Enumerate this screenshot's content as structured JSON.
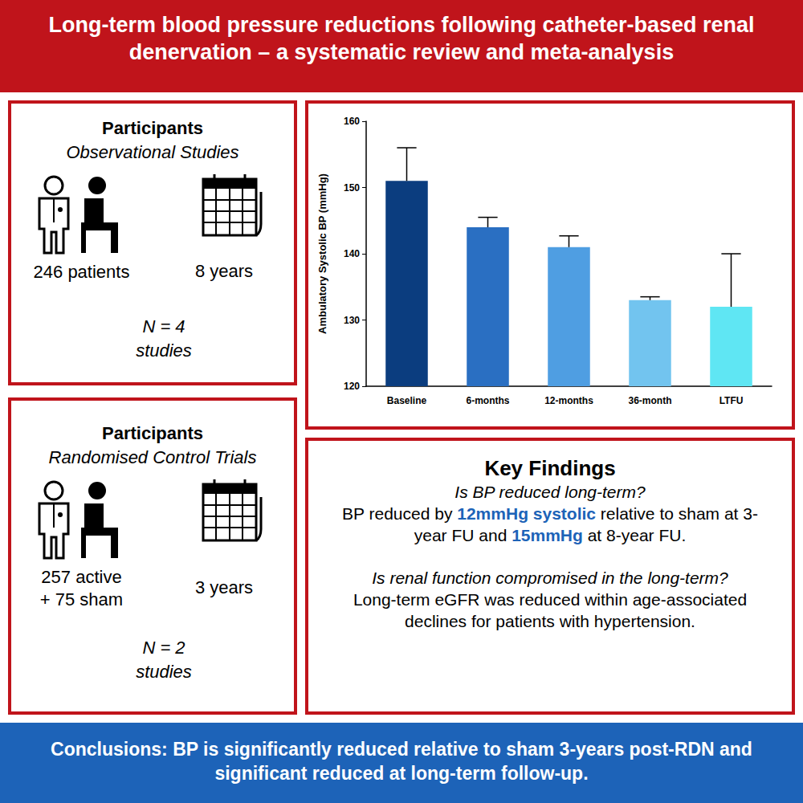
{
  "header": {
    "title": "Long-term blood pressure reductions following catheter-based renal denervation – a systematic review and meta-analysis"
  },
  "panels": [
    {
      "title": "Participants",
      "subtitle": "Observational Studies",
      "count_lines": [
        "246 patients"
      ],
      "duration": "8 years",
      "n_lines": [
        "N = 4",
        "studies"
      ]
    },
    {
      "title": "Participants",
      "subtitle": "Randomised Control Trials",
      "count_lines": [
        "257 active",
        "+ 75 sham"
      ],
      "duration": "3 years",
      "n_lines": [
        "N = 2",
        "studies"
      ]
    }
  ],
  "chart_data": {
    "type": "bar",
    "y_label": "Ambulatory Systolic BP (mmHg)",
    "categories": [
      "Baseline",
      "6-months",
      "12-months",
      "36-month",
      "LTFU"
    ],
    "values": [
      151,
      144,
      141,
      133,
      132
    ],
    "errors": [
      5,
      1.5,
      1.7,
      0.5,
      8
    ],
    "colors": [
      "#0b3d7f",
      "#2a6fc2",
      "#4f9ee2",
      "#72c4ef",
      "#5fe6f3"
    ],
    "ylim": [
      120,
      160
    ],
    "yticks": [
      120,
      130,
      140,
      150,
      160
    ],
    "grid": false
  },
  "key_findings": {
    "title": "Key Findings",
    "q1": "Is BP reduced long-term?",
    "a1": [
      {
        "text": "BP reduced by "
      },
      {
        "text": "12mmHg systolic",
        "highlight": true
      },
      {
        "text": " relative to sham at 3-year FU and "
      },
      {
        "text": "15mmHg",
        "highlight": true
      },
      {
        "text": " at 8-year FU."
      }
    ],
    "q2": "Is renal function compromised in the long-term?",
    "a2": "Long-term eGFR was reduced within age-associated declines for patients with hypertension."
  },
  "footer": {
    "label": "Conclusions:",
    "text": " BP is significantly reduced relative to sham 3-years post-RDN and significant reduced at long-term follow-up."
  }
}
